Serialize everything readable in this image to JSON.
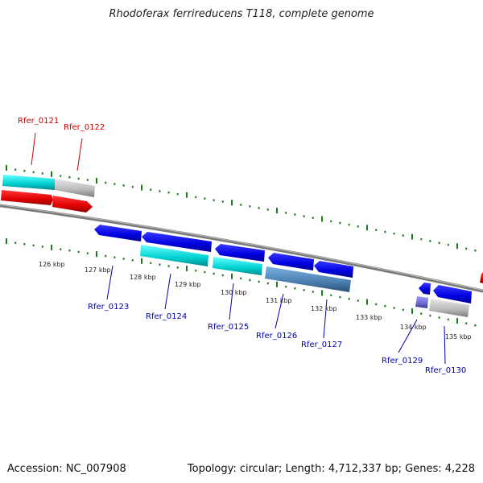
{
  "title": "Rhodoferax ferrireducens T118, complete genome",
  "accession": "Accession: NC_007908",
  "summary": "Topology: circular; Length: 4,712,337 bp; Genes: 4,228",
  "kbp_labels": [
    "126 kbp",
    "127 kbp",
    "128 kbp",
    "129 kbp",
    "130 kbp",
    "131 kbp",
    "132 kbp",
    "133 kbp",
    "134 kbp",
    "135 kbp"
  ],
  "genes": [
    {
      "label": "Rfer_0121",
      "color": "#cc0000"
    },
    {
      "label": "Rfer_0122",
      "color": "#cc0000"
    },
    {
      "label": "Rfer_0123",
      "color": "#0000aa"
    },
    {
      "label": "Rfer_0124",
      "color": "#0000aa"
    },
    {
      "label": "Rfer_0125",
      "color": "#0000aa"
    },
    {
      "label": "Rfer_0126",
      "color": "#0000aa"
    },
    {
      "label": "Rfer_0127",
      "color": "#0000aa"
    },
    {
      "label": "Rfer_0129",
      "color": "#0000aa"
    },
    {
      "label": "Rfer_0130",
      "color": "#0000aa"
    }
  ],
  "colors": {
    "backbone": "#7a7a7a",
    "ticks": "#1f7a1f",
    "forward_cds": "#e00000",
    "reverse_cds": "#0000e6",
    "cyan_feature": "#00c8c8",
    "grey_feature": "#b0b0b0",
    "steel_feature": "#4a7fb0"
  }
}
